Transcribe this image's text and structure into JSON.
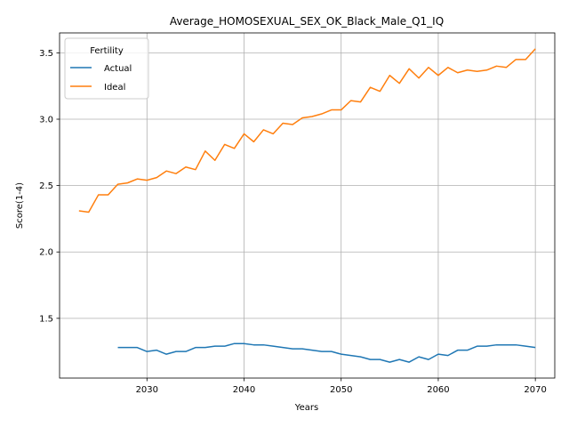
{
  "chart_data": {
    "type": "line",
    "title": "Average_HOMOSEXUAL_SEX_OK_Black_Male_Q1_IQ",
    "xlabel": "Years",
    "ylabel": "Score(1-4)",
    "xlim": [
      2021,
      2072
    ],
    "ylim": [
      1.05,
      3.65
    ],
    "xticks": [
      2030,
      2040,
      2050,
      2060,
      2070
    ],
    "yticks": [
      1.5,
      2.0,
      2.5,
      3.0,
      3.5
    ],
    "grid": true,
    "legend": {
      "title": "Fertility",
      "position": "top-left"
    },
    "series": [
      {
        "name": "Actual",
        "color": "#1f77b4",
        "x": [
          2027,
          2028,
          2029,
          2030,
          2031,
          2032,
          2033,
          2034,
          2035,
          2036,
          2037,
          2038,
          2039,
          2040,
          2041,
          2042,
          2043,
          2044,
          2045,
          2046,
          2047,
          2048,
          2049,
          2050,
          2051,
          2052,
          2053,
          2054,
          2055,
          2056,
          2057,
          2058,
          2059,
          2060,
          2061,
          2062,
          2063,
          2064,
          2065,
          2066,
          2067,
          2068,
          2069,
          2070
        ],
        "y": [
          1.28,
          1.28,
          1.28,
          1.25,
          1.26,
          1.23,
          1.25,
          1.25,
          1.28,
          1.28,
          1.29,
          1.29,
          1.31,
          1.31,
          1.3,
          1.3,
          1.29,
          1.28,
          1.27,
          1.27,
          1.26,
          1.25,
          1.25,
          1.23,
          1.22,
          1.21,
          1.19,
          1.19,
          1.17,
          1.19,
          1.17,
          1.21,
          1.19,
          1.23,
          1.22,
          1.26,
          1.26,
          1.29,
          1.29,
          1.3,
          1.3,
          1.3,
          1.29,
          1.28
        ]
      },
      {
        "name": "Ideal",
        "color": "#ff7f0e",
        "x": [
          2023,
          2024,
          2025,
          2026,
          2027,
          2028,
          2029,
          2030,
          2031,
          2032,
          2033,
          2034,
          2035,
          2036,
          2037,
          2038,
          2039,
          2040,
          2041,
          2042,
          2043,
          2044,
          2045,
          2046,
          2047,
          2048,
          2049,
          2050,
          2051,
          2052,
          2053,
          2054,
          2055,
          2056,
          2057,
          2058,
          2059,
          2060,
          2061,
          2062,
          2063,
          2064,
          2065,
          2066,
          2067,
          2068,
          2069,
          2070
        ],
        "y": [
          2.31,
          2.3,
          2.43,
          2.43,
          2.51,
          2.52,
          2.55,
          2.54,
          2.56,
          2.61,
          2.59,
          2.64,
          2.62,
          2.76,
          2.69,
          2.81,
          2.78,
          2.89,
          2.83,
          2.92,
          2.89,
          2.97,
          2.96,
          3.01,
          3.02,
          3.04,
          3.07,
          3.07,
          3.14,
          3.13,
          3.24,
          3.21,
          3.33,
          3.27,
          3.38,
          3.31,
          3.39,
          3.33,
          3.39,
          3.35,
          3.37,
          3.36,
          3.37,
          3.4,
          3.39,
          3.45,
          3.45,
          3.53
        ]
      }
    ]
  }
}
